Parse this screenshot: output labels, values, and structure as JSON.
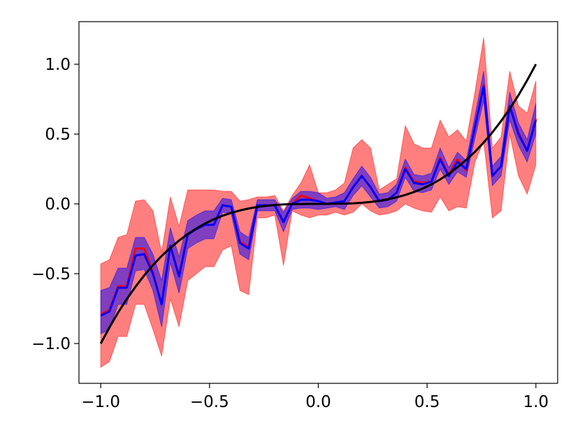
{
  "chart_data": {
    "type": "line",
    "x": [
      -1.0,
      -0.96,
      -0.92,
      -0.88,
      -0.84,
      -0.8,
      -0.76,
      -0.72,
      -0.68,
      -0.64,
      -0.6,
      -0.56,
      -0.52,
      -0.48,
      -0.44,
      -0.4,
      -0.36,
      -0.32,
      -0.28,
      -0.24,
      -0.2,
      -0.16,
      -0.12,
      -0.08,
      -0.04,
      0.0,
      0.04,
      0.08,
      0.12,
      0.16,
      0.2,
      0.24,
      0.28,
      0.32,
      0.36,
      0.4,
      0.44,
      0.48,
      0.52,
      0.56,
      0.6,
      0.64,
      0.68,
      0.72,
      0.76,
      0.8,
      0.84,
      0.88,
      0.92,
      0.96,
      1.0
    ],
    "bands": [
      {
        "color": "#ff0000",
        "lower": [
          -1.17,
          -1.13,
          -0.95,
          -0.95,
          -0.72,
          -0.72,
          -0.9,
          -1.09,
          -0.68,
          -0.88,
          -0.55,
          -0.5,
          -0.45,
          -0.45,
          -0.33,
          -0.3,
          -0.62,
          -0.65,
          -0.1,
          -0.1,
          -0.08,
          -0.44,
          -0.05,
          -0.08,
          -0.1,
          -0.08,
          -0.08,
          -0.06,
          -0.08,
          -0.06,
          0.0,
          -0.05,
          -0.08,
          -0.07,
          -0.05,
          0.0,
          -0.03,
          -0.05,
          -0.06,
          0.05,
          -0.05,
          -0.02,
          -0.03,
          0.3,
          0.45,
          -0.1,
          -0.05,
          0.5,
          0.2,
          0.07,
          0.28
        ],
        "upper": [
          -0.43,
          -0.4,
          -0.24,
          -0.22,
          0.02,
          0.03,
          -0.05,
          -0.35,
          0.05,
          -0.16,
          0.1,
          0.1,
          0.1,
          0.1,
          0.09,
          0.09,
          0.02,
          0.03,
          0.05,
          0.05,
          0.06,
          -0.05,
          0.06,
          0.15,
          0.28,
          0.08,
          0.08,
          0.1,
          0.15,
          0.4,
          0.46,
          0.4,
          0.1,
          0.14,
          0.18,
          0.56,
          0.43,
          0.4,
          0.4,
          0.6,
          0.48,
          0.53,
          0.45,
          0.8,
          1.19,
          0.4,
          0.48,
          0.95,
          0.7,
          0.65,
          0.88
        ]
      },
      {
        "color": "#0000ff",
        "lower": [
          -0.93,
          -0.9,
          -0.72,
          -0.72,
          -0.48,
          -0.47,
          -0.62,
          -0.88,
          -0.42,
          -0.64,
          -0.32,
          -0.28,
          -0.25,
          -0.25,
          -0.06,
          -0.07,
          -0.36,
          -0.4,
          -0.05,
          -0.05,
          -0.05,
          -0.2,
          -0.04,
          -0.03,
          -0.03,
          -0.04,
          -0.03,
          -0.02,
          -0.04,
          0.06,
          0.13,
          0.05,
          -0.03,
          -0.02,
          0.02,
          0.19,
          0.09,
          0.08,
          0.1,
          0.25,
          0.14,
          0.23,
          0.19,
          0.47,
          0.74,
          0.13,
          0.2,
          0.6,
          0.42,
          0.3,
          0.5
        ],
        "upper": [
          -0.62,
          -0.6,
          -0.46,
          -0.46,
          -0.24,
          -0.24,
          -0.36,
          -0.55,
          -0.17,
          -0.38,
          -0.12,
          -0.08,
          -0.05,
          -0.05,
          0.04,
          0.03,
          -0.2,
          -0.24,
          0.03,
          0.03,
          0.03,
          -0.06,
          0.04,
          0.09,
          0.09,
          0.08,
          0.04,
          0.05,
          0.08,
          0.18,
          0.27,
          0.19,
          0.07,
          0.08,
          0.14,
          0.32,
          0.21,
          0.2,
          0.22,
          0.4,
          0.26,
          0.37,
          0.31,
          0.63,
          0.95,
          0.27,
          0.34,
          0.8,
          0.58,
          0.46,
          0.72
        ]
      }
    ],
    "series": [
      {
        "color": "#ff0000",
        "values": [
          -0.79,
          -0.76,
          -0.59,
          -0.59,
          -0.32,
          -0.32,
          -0.49,
          -0.72,
          -0.3,
          -0.51,
          -0.22,
          -0.18,
          -0.15,
          -0.15,
          -0.01,
          -0.02,
          -0.27,
          -0.31,
          -0.01,
          -0.01,
          -0.01,
          -0.13,
          0.0,
          0.06,
          0.04,
          0.02,
          0.0,
          0.01,
          0.02,
          0.12,
          0.2,
          0.12,
          0.02,
          0.03,
          0.08,
          0.26,
          0.16,
          0.15,
          0.16,
          0.33,
          0.21,
          0.32,
          0.24,
          0.55,
          0.85,
          0.2,
          0.27,
          0.7,
          0.51,
          0.38,
          0.61
        ]
      },
      {
        "color": "#0000ff",
        "values": [
          -0.8,
          -0.77,
          -0.6,
          -0.6,
          -0.37,
          -0.36,
          -0.5,
          -0.72,
          -0.3,
          -0.52,
          -0.22,
          -0.18,
          -0.15,
          -0.15,
          -0.01,
          -0.02,
          -0.28,
          -0.32,
          -0.01,
          -0.01,
          -0.01,
          -0.13,
          0.0,
          0.03,
          0.03,
          0.02,
          0.0,
          0.01,
          0.02,
          0.12,
          0.2,
          0.12,
          0.02,
          0.03,
          0.08,
          0.25,
          0.15,
          0.14,
          0.16,
          0.32,
          0.2,
          0.3,
          0.25,
          0.55,
          0.84,
          0.2,
          0.27,
          0.7,
          0.5,
          0.38,
          0.6
        ]
      },
      {
        "color": "#000000",
        "values": [
          -1.0,
          -0.885,
          -0.778,
          -0.681,
          -0.593,
          -0.512,
          -0.439,
          -0.373,
          -0.315,
          -0.263,
          -0.216,
          -0.175,
          -0.14,
          -0.11,
          -0.085,
          -0.064,
          -0.047,
          -0.033,
          -0.022,
          -0.014,
          -0.008,
          -0.004,
          -0.002,
          -0.001,
          0.0,
          0.0,
          0.0,
          0.001,
          0.002,
          0.004,
          0.008,
          0.014,
          0.022,
          0.033,
          0.047,
          0.064,
          0.085,
          0.11,
          0.14,
          0.175,
          0.216,
          0.263,
          0.315,
          0.373,
          0.439,
          0.512,
          0.593,
          0.681,
          0.778,
          0.885,
          1.0
        ]
      }
    ],
    "xlim": [
      -1.1,
      1.1
    ],
    "ylim": [
      -1.285,
      1.305
    ],
    "xticks": [
      {
        "value": -1.0,
        "label": "−1.0"
      },
      {
        "value": -0.5,
        "label": "−0.5"
      },
      {
        "value": 0,
        "label": "0.0"
      },
      0.5,
      {
        "value": 1.0,
        "label": "1.0"
      }
    ],
    "yticks": [
      {
        "value": -1.0,
        "label": "−1.0"
      },
      {
        "value": -0.5,
        "label": "−0.5"
      },
      {
        "value": 0,
        "label": "0.0"
      },
      0.5,
      {
        "value": 1.0,
        "label": "1.0"
      }
    ],
    "grid": false
  }
}
